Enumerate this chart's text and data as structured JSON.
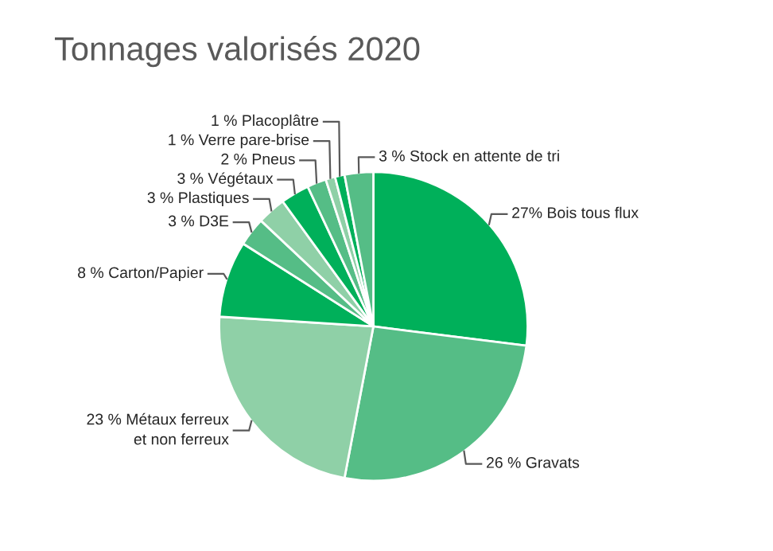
{
  "chart_data": {
    "type": "pie",
    "title": "Tonnages valorisés 2020",
    "categories": [
      "27% Bois tous flux",
      "26 % Gravats",
      "23 % Métaux ferreux\net non ferreux",
      "8 % Carton/Papier",
      "3 % D3E",
      "3 % Plastiques",
      "3 % Végétaux",
      "2 % Pneus",
      "1 % Verre pare-brise",
      "1 % Placoplâtre",
      "3 % Stock en attente de tri"
    ],
    "values": [
      27,
      26,
      23,
      8,
      3,
      3,
      3,
      2,
      1,
      1,
      3
    ],
    "colors": [
      "#00b05a",
      "#55bd86",
      "#8fd0a7",
      "#00b05a",
      "#55bd86",
      "#8fd0a7",
      "#00b05a",
      "#55bd86",
      "#8fd0a7",
      "#00b05a",
      "#55bd86"
    ]
  }
}
